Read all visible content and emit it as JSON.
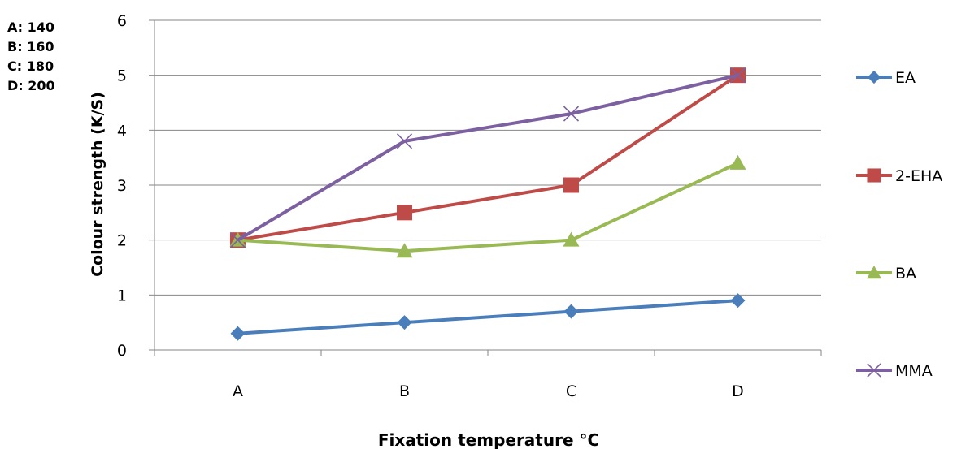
{
  "chart_data": {
    "type": "line",
    "categories": [
      "A",
      "B",
      "C",
      "D"
    ],
    "series": [
      {
        "name": "EA",
        "values": [
          0.3,
          0.5,
          0.7,
          0.9
        ],
        "color": "#4A7EBB",
        "marker": "diamond"
      },
      {
        "name": "2-EHA",
        "values": [
          2.0,
          2.5,
          3.0,
          5.0
        ],
        "color": "#BE4B48",
        "marker": "square"
      },
      {
        "name": "BA",
        "values": [
          2.0,
          1.8,
          2.0,
          3.4
        ],
        "color": "#98B954",
        "marker": "triangle"
      },
      {
        "name": "MMA",
        "values": [
          2.0,
          3.8,
          4.3,
          5.0
        ],
        "color": "#7D60A0",
        "marker": "x"
      }
    ],
    "xlabel": "Fixation temperature °C",
    "ylabel": "Colour strength (K/S)",
    "ylim": [
      0,
      6
    ],
    "yticks": [
      "0",
      "1",
      "2",
      "3",
      "4",
      "5",
      "6"
    ],
    "grid": true,
    "legend": "right",
    "annotations": [
      "A: 140",
      "B: 160",
      "C: 180",
      "D: 200"
    ]
  }
}
